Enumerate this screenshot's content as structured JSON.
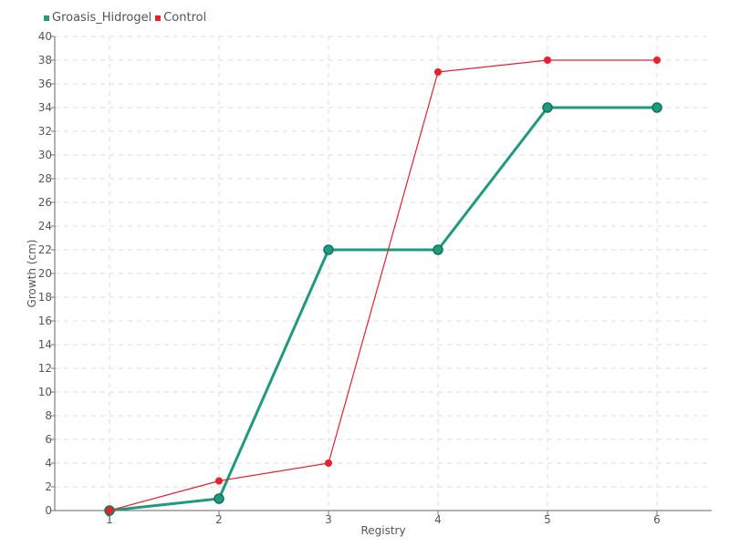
{
  "legend": {
    "items": [
      {
        "name": "Groasis_Hidrogel",
        "color": "#1f9a7e"
      },
      {
        "name": "Control",
        "color": "#e8202e"
      }
    ]
  },
  "chart_data": {
    "type": "line",
    "title": "",
    "xlabel": "Registry",
    "ylabel": "Growth (cm)",
    "x": [
      1,
      2,
      3,
      4,
      5,
      6
    ],
    "xlim": [
      0.5,
      6.5
    ],
    "ylim": [
      0,
      40
    ],
    "ytick_step": 2,
    "grid": true,
    "legend_position": "top-left",
    "series": [
      {
        "name": "Groasis_Hidrogel",
        "color": "#1f9a7e",
        "values": [
          0,
          1,
          22,
          22,
          34,
          34
        ]
      },
      {
        "name": "Control",
        "color": "#e8202e",
        "values": [
          0,
          2.5,
          4,
          37,
          38,
          38
        ]
      }
    ]
  }
}
